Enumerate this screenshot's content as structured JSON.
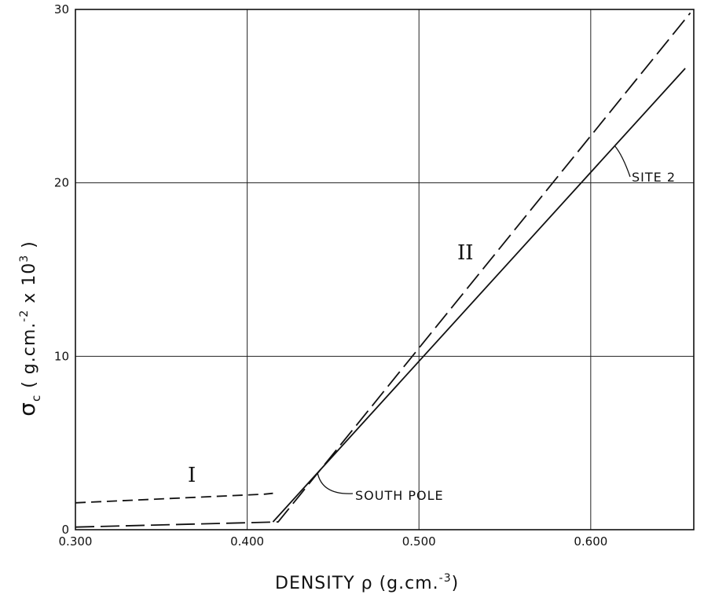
{
  "chart_data": {
    "type": "line",
    "title": "",
    "xlabel": "DENSITY  ρ  (g.cm.",
    "xlabel_sup": "-3",
    "xlabel_end": ")",
    "ylabel_sigma": "σ",
    "ylabel_sub": "c",
    "ylabel_unit": "( g.cm.",
    "ylabel_sup1": "-2",
    "ylabel_mid": " x 10",
    "ylabel_sup2": "3",
    "ylabel_end": " )",
    "xlim": [
      0.3,
      0.66
    ],
    "ylim": [
      0,
      30
    ],
    "xticks": [
      0.3,
      0.4,
      0.5,
      0.6
    ],
    "xtick_labels": [
      "0.300",
      "0.400",
      "0.500",
      "0.600"
    ],
    "yticks": [
      0,
      10,
      20,
      30
    ],
    "ytick_labels": [
      "0",
      "10",
      "20",
      "30"
    ],
    "grid": true,
    "series": [
      {
        "name": "SITE 2",
        "style": "solid",
        "points": [
          [
            0.415,
            0.45
          ],
          [
            0.655,
            26.6
          ]
        ]
      },
      {
        "name": "SOUTH POLE",
        "style": "long-dash",
        "points": [
          [
            0.3,
            0.15
          ],
          [
            0.418,
            0.45
          ],
          [
            0.658,
            29.8
          ]
        ]
      },
      {
        "name": "",
        "style": "short-dash",
        "points": [
          [
            0.3,
            1.55
          ],
          [
            0.41,
            2.05
          ],
          [
            0.415,
            2.1
          ]
        ]
      }
    ],
    "annotations": [
      {
        "text": "SITE 2",
        "target": "SITE 2"
      },
      {
        "text": "SOUTH POLE",
        "target": "SOUTH POLE"
      },
      {
        "text": "I",
        "region": "low-density"
      },
      {
        "text": "II",
        "region": "high-density"
      }
    ],
    "colors": {
      "line": "#111111",
      "grid": "#222222",
      "background": "#ffffff"
    }
  }
}
